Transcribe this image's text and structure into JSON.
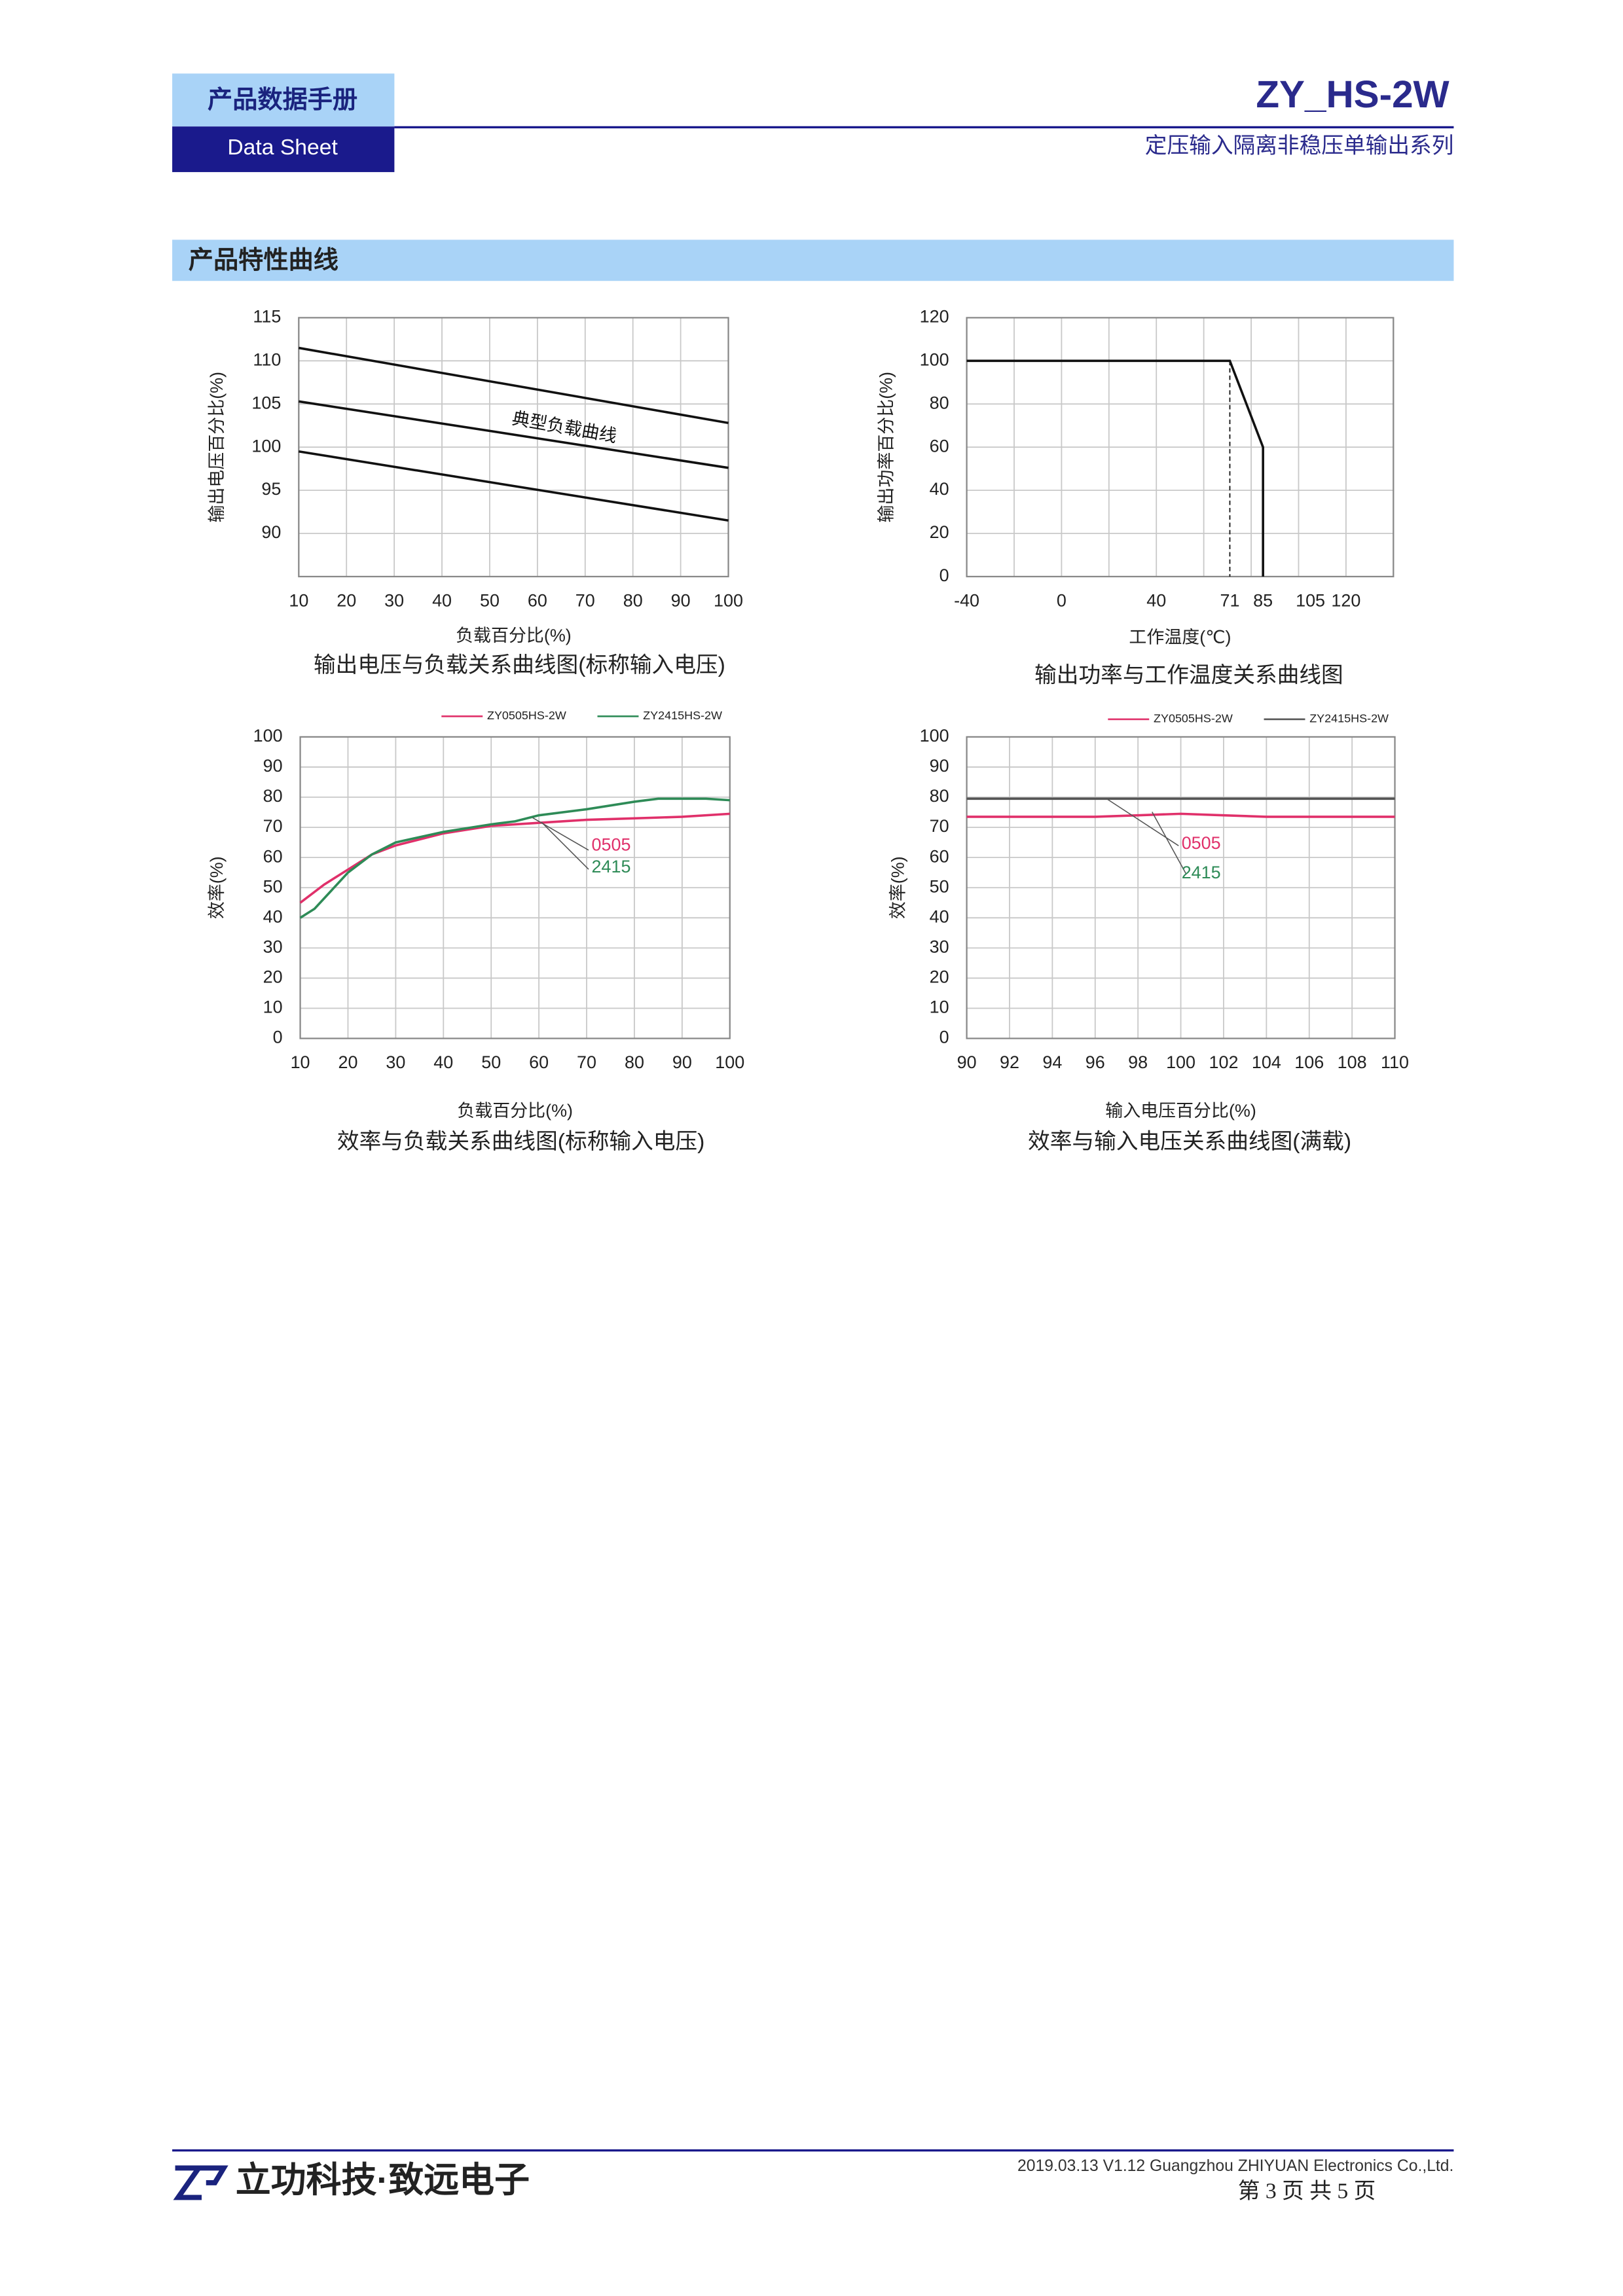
{
  "header": {
    "title": "产品数据手册",
    "subtitle": "Data Sheet",
    "product": "ZY_HS-2W",
    "series": "定压输入隔离非稳压单输出系列"
  },
  "section": "产品特性曲线",
  "chart_data": [
    {
      "type": "line",
      "title": "输出电压与负载关系曲线图(标称输入电压)",
      "xlabel": "负载百分比(%)",
      "ylabel": "输出电压百分比(%)",
      "x": [
        10,
        100
      ],
      "xlim": [
        10,
        100
      ],
      "xticks": [
        10,
        20,
        30,
        40,
        50,
        60,
        70,
        80,
        90,
        100
      ],
      "ylim": [
        85,
        115
      ],
      "yticks": [
        90,
        95,
        100,
        105,
        110,
        115
      ],
      "grid": true,
      "series": [
        {
          "color": "#111111",
          "values": [
            111.5,
            102.8
          ]
        },
        {
          "color": "#111111",
          "values": [
            105.3,
            97.6
          ]
        },
        {
          "color": "#111111",
          "values": [
            99.5,
            91.5
          ]
        }
      ],
      "annotations": [
        {
          "text": "典型负载曲线",
          "color": "#111111"
        }
      ]
    },
    {
      "type": "line",
      "title": "输出功率与工作温度关系曲线图",
      "xlabel": "工作温度(℃)",
      "ylabel": "输出功率百分比(%)",
      "xlim": [
        -40,
        140
      ],
      "xticks": [
        -40,
        0,
        40,
        71,
        85,
        105,
        120
      ],
      "xgrid": [
        -40,
        -20,
        0,
        20,
        40,
        60,
        80,
        100,
        120,
        140
      ],
      "ylim": [
        0,
        120
      ],
      "yticks": [
        0,
        20,
        40,
        60,
        80,
        100,
        120
      ],
      "grid": true,
      "series": [
        {
          "color": "#111111",
          "x": [
            -40,
            71,
            85,
            85
          ],
          "values": [
            100,
            100,
            60,
            0
          ]
        },
        {
          "color": "#111111",
          "dash": true,
          "x": [
            71,
            71
          ],
          "values": [
            100,
            0
          ]
        }
      ]
    },
    {
      "type": "line",
      "title": "效率与负载关系曲线图(标称输入电压)",
      "xlabel": "负载百分比(%)",
      "ylabel": "效率(%)",
      "xlim": [
        10,
        100
      ],
      "xticks": [
        10,
        20,
        30,
        40,
        50,
        60,
        70,
        80,
        90,
        100
      ],
      "ylim": [
        0,
        100
      ],
      "yticks": [
        0,
        10,
        20,
        30,
        40,
        50,
        60,
        70,
        80,
        90,
        100
      ],
      "grid": true,
      "series": [
        {
          "name": "ZY0505HS-2W",
          "color": "#e0306a",
          "x": [
            10,
            15,
            20,
            25,
            30,
            40,
            50,
            60,
            70,
            80,
            90,
            100
          ],
          "values": [
            45,
            51,
            56,
            61,
            64,
            68,
            70.5,
            71.5,
            72.5,
            73,
            73.5,
            74.5
          ]
        },
        {
          "name": "ZY2415HS-2W",
          "color": "#2e8b57",
          "x": [
            10,
            13,
            20,
            25,
            30,
            40,
            50,
            55,
            60,
            70,
            80,
            85,
            90,
            95,
            100
          ],
          "values": [
            40,
            43,
            55,
            61,
            65,
            68.5,
            71,
            72,
            74,
            76,
            78.5,
            79.5,
            79.5,
            79.5,
            79
          ]
        }
      ],
      "annotations": [
        {
          "text": "0505",
          "color": "#e0306a"
        },
        {
          "text": "2415",
          "color": "#2e8b57"
        }
      ]
    },
    {
      "type": "line",
      "title": "效率与输入电压关系曲线图(满载)",
      "xlabel": "输入电压百分比(%)",
      "ylabel": "效率(%)",
      "xlim": [
        90,
        110
      ],
      "xticks": [
        90,
        92,
        94,
        96,
        98,
        100,
        102,
        104,
        106,
        108,
        110
      ],
      "ylim": [
        0,
        100
      ],
      "yticks": [
        0,
        10,
        20,
        30,
        40,
        50,
        60,
        70,
        80,
        90,
        100
      ],
      "grid": true,
      "series": [
        {
          "name": "ZY0505HS-2W",
          "color": "#e0306a",
          "x": [
            90,
            92,
            94,
            96,
            98,
            100,
            102,
            104,
            106,
            108,
            110
          ],
          "values": [
            73.5,
            73.5,
            73.5,
            73.5,
            74,
            74.5,
            74,
            73.5,
            73.5,
            73.5,
            73.5
          ]
        },
        {
          "name": "ZY2415HS-2W",
          "color": "#555555",
          "x": [
            90,
            110
          ],
          "values": [
            79.5,
            79.5
          ]
        }
      ],
      "annotations": [
        {
          "text": "0505",
          "color": "#e0306a"
        },
        {
          "text": "2415",
          "color": "#2e8b57"
        }
      ]
    }
  ],
  "footer": {
    "brand": "立功科技·致远电子",
    "info": "2019.03.13   V1.12   Guangzhou ZHIYUAN Electronics Co.,Ltd.",
    "page": "第 3 页  共 5 页"
  }
}
